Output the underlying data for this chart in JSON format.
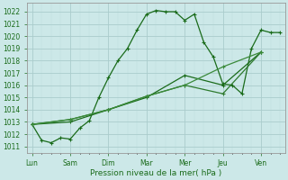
{
  "xlabel": "Pression niveau de la mer( hPa )",
  "background_color": "#cce8e8",
  "grid_color": "#aacccc",
  "grid_color_minor": "#bbdddd",
  "line_color1": "#1a6b1a",
  "line_color2": "#2d7a2d",
  "line_color3": "#3a8a3a",
  "line_color4": "#4a9a4a",
  "xtick_labels": [
    "Lun",
    "Sam",
    "Dim",
    "Mar",
    "Mer",
    "Jeu",
    "Ven"
  ],
  "xtick_positions": [
    0,
    4,
    8,
    12,
    16,
    20,
    24
  ],
  "xlim": [
    -0.5,
    26.5
  ],
  "ylim": [
    1010.5,
    1022.7
  ],
  "yticks": [
    1011,
    1012,
    1013,
    1014,
    1015,
    1016,
    1017,
    1018,
    1019,
    1020,
    1021,
    1022
  ],
  "line1_x": [
    0,
    1,
    2,
    3,
    4,
    5,
    6,
    7,
    8,
    9,
    10,
    11,
    12,
    13,
    14,
    15,
    16,
    17,
    18,
    19,
    20,
    21,
    22,
    23,
    24,
    25,
    26
  ],
  "line1_y": [
    1012.8,
    1011.5,
    1011.3,
    1011.7,
    1011.6,
    1012.5,
    1013.1,
    1015.0,
    1016.6,
    1018.0,
    1019.0,
    1020.5,
    1021.8,
    1022.1,
    1022.0,
    1022.0,
    1021.3,
    1021.8,
    1019.5,
    1018.3,
    1016.1,
    1016.0,
    1015.3,
    1019.0,
    1020.5,
    1020.3,
    1020.3
  ],
  "line2_x": [
    0,
    4,
    8,
    12,
    16,
    20,
    24
  ],
  "line2_y": [
    1012.8,
    1013.0,
    1014.0,
    1015.0,
    1016.8,
    1016.0,
    1018.7
  ],
  "line3_x": [
    0,
    4,
    8,
    12,
    16,
    20,
    24
  ],
  "line3_y": [
    1012.8,
    1013.2,
    1014.0,
    1015.1,
    1016.0,
    1015.3,
    1018.7
  ],
  "line4_x": [
    0,
    4,
    8,
    12,
    16,
    20,
    24
  ],
  "line4_y": [
    1012.8,
    1013.2,
    1014.0,
    1015.1,
    1016.0,
    1017.5,
    1018.7
  ]
}
